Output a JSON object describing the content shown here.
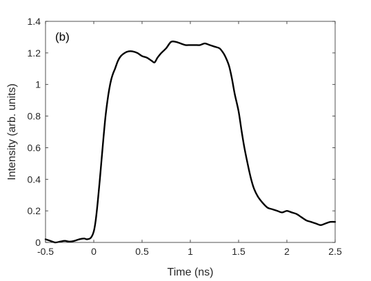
{
  "chart_data": {
    "type": "line",
    "panel_label": "(b)",
    "xlabel": "Time (ns)",
    "ylabel": "Intensity (arb. units)",
    "xlim": [
      -0.5,
      2.5
    ],
    "ylim": [
      0,
      1.4
    ],
    "x_ticks": [
      "-0.5",
      "0",
      "0.5",
      "1",
      "1.5",
      "2",
      "2.5"
    ],
    "x_tick_values": [
      -0.5,
      0,
      0.5,
      1,
      1.5,
      2,
      2.5
    ],
    "y_ticks": [
      "0",
      "0.2",
      "0.4",
      "0.6",
      "0.8",
      "1",
      "1.2",
      "1.4"
    ],
    "y_tick_values": [
      0,
      0.2,
      0.4,
      0.6,
      0.8,
      1.0,
      1.2,
      1.4
    ],
    "grid": false,
    "box": true,
    "line_color": "#000000",
    "series": [
      {
        "x": [
          -0.5,
          -0.45,
          -0.4,
          -0.35,
          -0.3,
          -0.25,
          -0.2,
          -0.15,
          -0.1,
          -0.07,
          -0.03,
          0.0,
          0.02,
          0.04,
          0.06,
          0.08,
          0.1,
          0.12,
          0.14,
          0.16,
          0.18,
          0.2,
          0.22,
          0.25,
          0.28,
          0.32,
          0.36,
          0.4,
          0.45,
          0.5,
          0.55,
          0.6,
          0.63,
          0.66,
          0.7,
          0.75,
          0.8,
          0.85,
          0.9,
          0.95,
          1.0,
          1.05,
          1.1,
          1.15,
          1.2,
          1.25,
          1.3,
          1.33,
          1.36,
          1.4,
          1.43,
          1.46,
          1.5,
          1.53,
          1.56,
          1.6,
          1.63,
          1.66,
          1.7,
          1.75,
          1.8,
          1.85,
          1.9,
          1.95,
          2.0,
          2.05,
          2.1,
          2.15,
          2.2,
          2.25,
          2.3,
          2.35,
          2.4,
          2.45,
          2.5
        ],
        "y": [
          0.02,
          0.01,
          0.0,
          0.005,
          0.01,
          0.005,
          0.01,
          0.02,
          0.025,
          0.02,
          0.03,
          0.07,
          0.14,
          0.25,
          0.38,
          0.52,
          0.66,
          0.79,
          0.89,
          0.97,
          1.03,
          1.07,
          1.1,
          1.15,
          1.18,
          1.2,
          1.21,
          1.21,
          1.2,
          1.18,
          1.17,
          1.15,
          1.14,
          1.17,
          1.2,
          1.23,
          1.27,
          1.27,
          1.26,
          1.25,
          1.25,
          1.25,
          1.25,
          1.26,
          1.25,
          1.24,
          1.23,
          1.21,
          1.18,
          1.12,
          1.04,
          0.94,
          0.83,
          0.71,
          0.6,
          0.48,
          0.4,
          0.34,
          0.29,
          0.25,
          0.22,
          0.21,
          0.2,
          0.19,
          0.2,
          0.19,
          0.18,
          0.16,
          0.14,
          0.13,
          0.12,
          0.11,
          0.12,
          0.13,
          0.13
        ]
      }
    ]
  }
}
